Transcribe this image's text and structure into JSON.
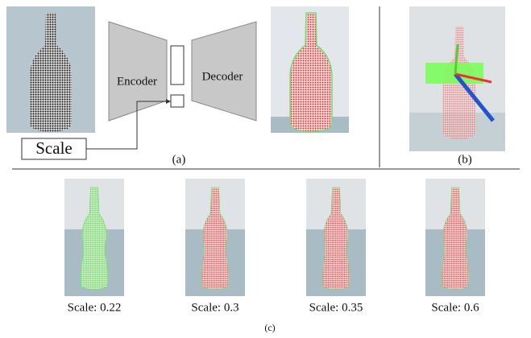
{
  "panel_a": {
    "encoder": "Encoder",
    "decoder": "Decoder",
    "input": "Scale",
    "caption": "(a)"
  },
  "panel_b": {
    "caption": "(b)"
  },
  "panel_c": {
    "labels": [
      "Scale: 0.22",
      "Scale: 0.3",
      "Scale: 0.35",
      "Scale: 0.6"
    ],
    "caption": "(c)"
  }
}
